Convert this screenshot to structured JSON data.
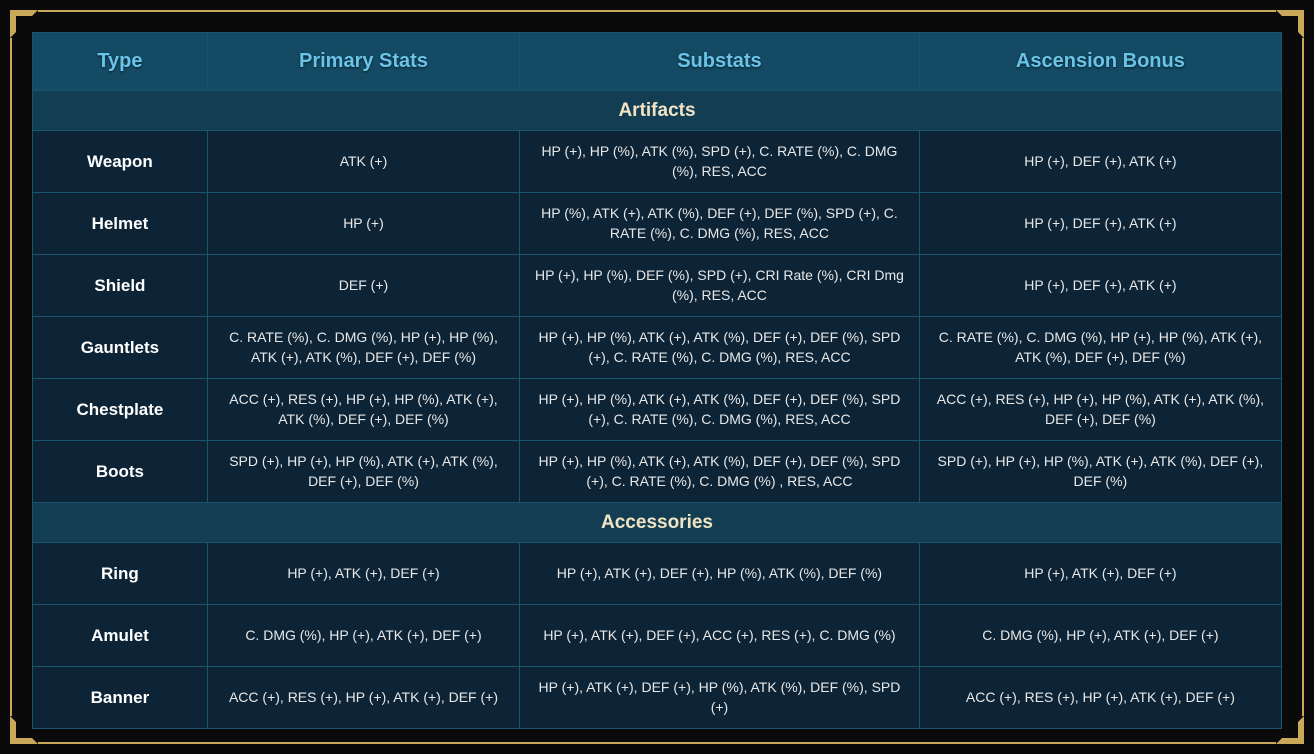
{
  "colors": {
    "frame_gold": "#c9a959",
    "header_bg": "#144a63",
    "header_text": "#69c4e8",
    "section_bg": "#133d52",
    "section_text": "#f0e4c4",
    "cell_bg": "#0d2436",
    "cell_text": "#e8e8e8",
    "border": "#1a5570"
  },
  "headers": {
    "type": "Type",
    "primary": "Primary Stats",
    "substats": "Substats",
    "ascension": "Ascension Bonus"
  },
  "sections": [
    {
      "title": "Artifacts",
      "rows": [
        {
          "type": "Weapon",
          "primary": "ATK (+)",
          "substats": "HP (+), HP (%), ATK (%), SPD (+), C. RATE (%), C. DMG (%), RES, ACC",
          "ascension": "HP (+), DEF (+), ATK (+)"
        },
        {
          "type": "Helmet",
          "primary": "HP (+)",
          "substats": "HP (%), ATK (+), ATK (%), DEF (+), DEF (%), SPD (+), C. RATE (%), C. DMG (%), RES, ACC",
          "ascension": "HP (+), DEF (+), ATK (+)"
        },
        {
          "type": "Shield",
          "primary": "DEF (+)",
          "substats": "HP (+), HP (%), DEF (%), SPD (+), CRI Rate (%), CRI Dmg (%), RES, ACC",
          "ascension": "HP (+), DEF (+), ATK (+)"
        },
        {
          "type": "Gauntlets",
          "primary": "C. RATE (%), C. DMG (%), HP (+), HP (%), ATK (+), ATK (%), DEF (+), DEF (%)",
          "substats": "HP (+), HP (%), ATK (+), ATK (%), DEF (+), DEF (%), SPD (+), C. RATE (%), C. DMG (%), RES, ACC",
          "ascension": "C. RATE (%), C. DMG (%), HP (+), HP (%), ATK (+), ATK (%), DEF (+), DEF (%)"
        },
        {
          "type": "Chestplate",
          "primary": "ACC (+), RES (+), HP (+), HP (%), ATK (+), ATK (%), DEF (+), DEF (%)",
          "substats": "HP (+), HP (%), ATK (+), ATK (%), DEF (+), DEF (%), SPD (+), C. RATE (%), C. DMG (%), RES, ACC",
          "ascension": "ACC (+), RES (+), HP (+), HP (%), ATK (+), ATK (%), DEF (+), DEF (%)"
        },
        {
          "type": "Boots",
          "primary": "SPD (+), HP (+), HP (%), ATK (+), ATK (%), DEF (+), DEF (%)",
          "substats": "HP (+), HP (%), ATK (+), ATK (%), DEF (+), DEF (%), SPD (+), C. RATE (%), C. DMG (%) , RES, ACC",
          "ascension": "SPD (+), HP (+), HP (%), ATK (+), ATK (%), DEF (+), DEF (%)"
        }
      ]
    },
    {
      "title": "Accessories",
      "rows": [
        {
          "type": "Ring",
          "primary": "HP (+), ATK (+), DEF (+)",
          "substats": "HP (+), ATK (+), DEF (+), HP (%), ATK (%), DEF (%)",
          "ascension": "HP (+), ATK (+), DEF (+)"
        },
        {
          "type": "Amulet",
          "primary": "C. DMG (%), HP (+), ATK (+), DEF (+)",
          "substats": "HP (+), ATK (+), DEF (+), ACC (+), RES (+), C. DMG (%)",
          "ascension": "C. DMG (%), HP (+), ATK (+), DEF (+)"
        },
        {
          "type": "Banner",
          "primary": "ACC (+), RES (+), HP (+), ATK (+), DEF (+)",
          "substats": "HP (+), ATK (+), DEF (+), HP (%), ATK (%), DEF (%), SPD (+)",
          "ascension": "ACC (+), RES (+), HP (+), ATK (+), DEF (+)"
        }
      ]
    }
  ]
}
